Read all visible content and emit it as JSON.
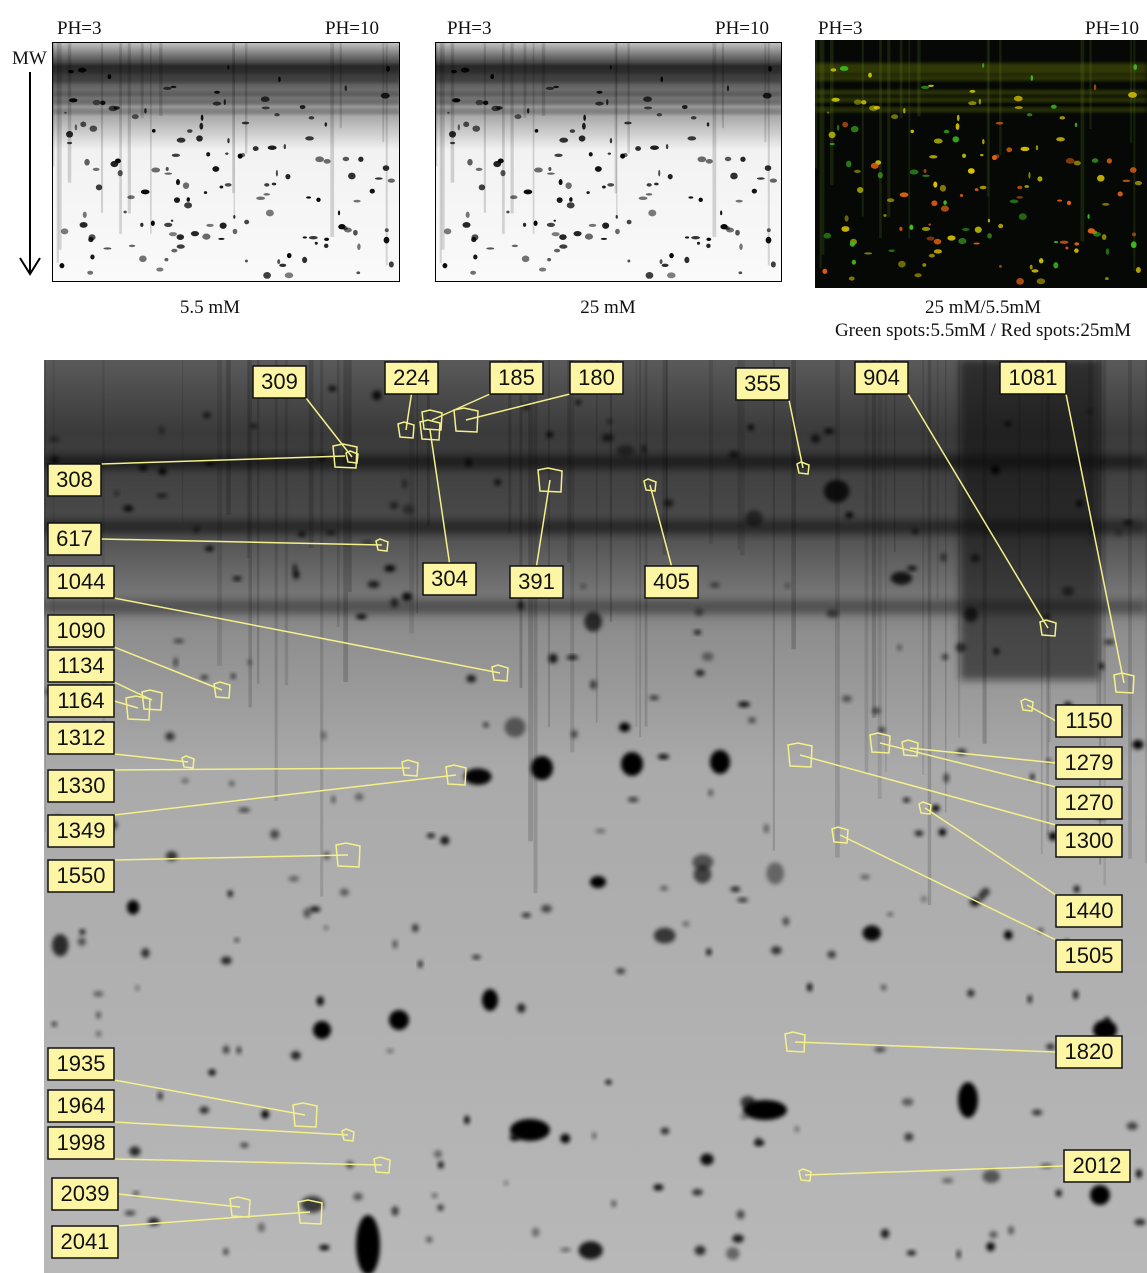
{
  "axis_label": "MW",
  "top_panels": [
    {
      "ph_low": "PH=3",
      "ph_high": "PH=10",
      "caption": "5.5 mM"
    },
    {
      "ph_low": "PH=3",
      "ph_high": "PH=10",
      "caption": "25 mM"
    },
    {
      "ph_low": "PH=3",
      "ph_high": "PH=10",
      "caption": "25 mM/5.5mM",
      "legend": "Green spots:5.5mM / Red spots:25mM"
    }
  ],
  "spot_labels": [
    "309",
    "224",
    "185",
    "180",
    "355",
    "904",
    "1081",
    "308",
    "617",
    "1044",
    "304",
    "391",
    "405",
    "1090",
    "1134",
    "1164",
    "1312",
    "1330",
    "1349",
    "1550",
    "1150",
    "1279",
    "1270",
    "1300",
    "1440",
    "1505",
    "1820",
    "1935",
    "1964",
    "1998",
    "2039",
    "2041",
    "2012"
  ]
}
